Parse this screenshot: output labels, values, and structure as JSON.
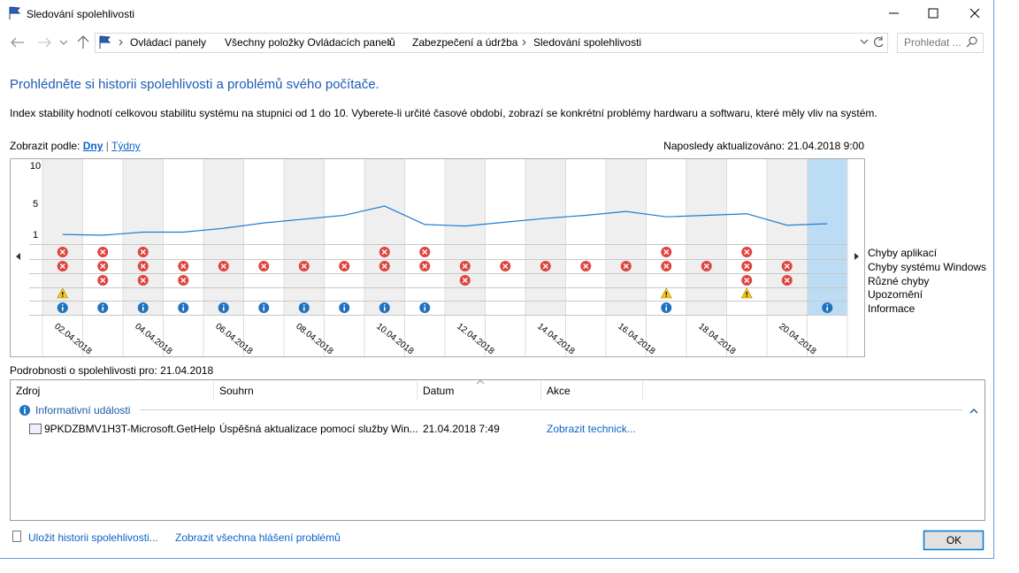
{
  "window": {
    "title": "Sledování spolehlivosti"
  },
  "address": {
    "breadcrumbs": [
      "Ovládací panely",
      "Všechny položky Ovládacích panelů",
      "Zabezpečení a údržba",
      "Sledování spolehlivosti"
    ],
    "search": "Prohledat ..."
  },
  "heading": "Prohlédněte si historii spolehlivosti a problémů svého počítače.",
  "description": "Index stability hodnotí celkovou stabilitu systému na stupnici od 1 do 10. Vyberete-li určité časové období, zobrazí se konkrétní problémy hardwaru a softwaru, které měly vliv na systém.",
  "view": {
    "label": "Zobrazit podle:",
    "options": [
      "Dny",
      "Týdny"
    ],
    "separator": "|"
  },
  "last_updated": "Naposledy aktualizováno: 21.04.2018 9:00",
  "chart_data": {
    "type": "line",
    "categories": [
      "02.04.2018",
      null,
      "04.04.2018",
      null,
      "06.04.2018",
      null,
      "08.04.2018",
      null,
      "10.04.2018",
      null,
      "12.04.2018",
      null,
      "14.04.2018",
      null,
      "16.04.2018",
      null,
      "18.04.2018",
      null,
      "20.04.2018",
      null
    ],
    "values": [
      1.1,
      1.0,
      1.4,
      1.4,
      1.9,
      2.6,
      3.1,
      3.6,
      4.8,
      2.4,
      2.2,
      2.7,
      3.2,
      3.6,
      4.1,
      3.4,
      3.6,
      3.8,
      2.3,
      2.5
    ],
    "color": "#1f7bd0",
    "ylim": [
      1,
      10
    ],
    "yticks": [
      1,
      5,
      10
    ],
    "selected": 19,
    "event_rows": [
      {
        "name": "Chyby aplikací",
        "icon": "error",
        "days": [
          0,
          1,
          2,
          8,
          9,
          15,
          17
        ]
      },
      {
        "name": "Chyby systému Windows",
        "icon": "error",
        "days": [
          0,
          1,
          2,
          3,
          4,
          5,
          6,
          7,
          8,
          9,
          10,
          11,
          12,
          13,
          14,
          15,
          16,
          17,
          18
        ]
      },
      {
        "name": "Různé chyby",
        "icon": "error",
        "days": [
          1,
          2,
          3,
          10,
          17,
          18
        ]
      },
      {
        "name": "Upozornění",
        "icon": "warning",
        "days": [
          0,
          15,
          17
        ]
      },
      {
        "name": "Informace",
        "icon": "info",
        "days": [
          0,
          1,
          2,
          3,
          4,
          5,
          6,
          7,
          8,
          9,
          15,
          19
        ]
      }
    ]
  },
  "details": {
    "title": "Podrobnosti o spolehlivosti pro: 21.04.2018",
    "columns": [
      "Zdroj",
      "Souhrn",
      "Datum",
      "Akce"
    ],
    "group": "Informativní události",
    "rows": [
      [
        "9PKDZBMV1H3T-Microsoft.GetHelp",
        "Úspěšná aktualizace pomocí služby Win...",
        "21.04.2018 7:49",
        "Zobrazit technick..."
      ]
    ]
  },
  "footer": {
    "links": [
      "Uložit historii spolehlivosti...",
      "Zobrazit všechna hlášení problémů"
    ],
    "ok": "OK"
  }
}
